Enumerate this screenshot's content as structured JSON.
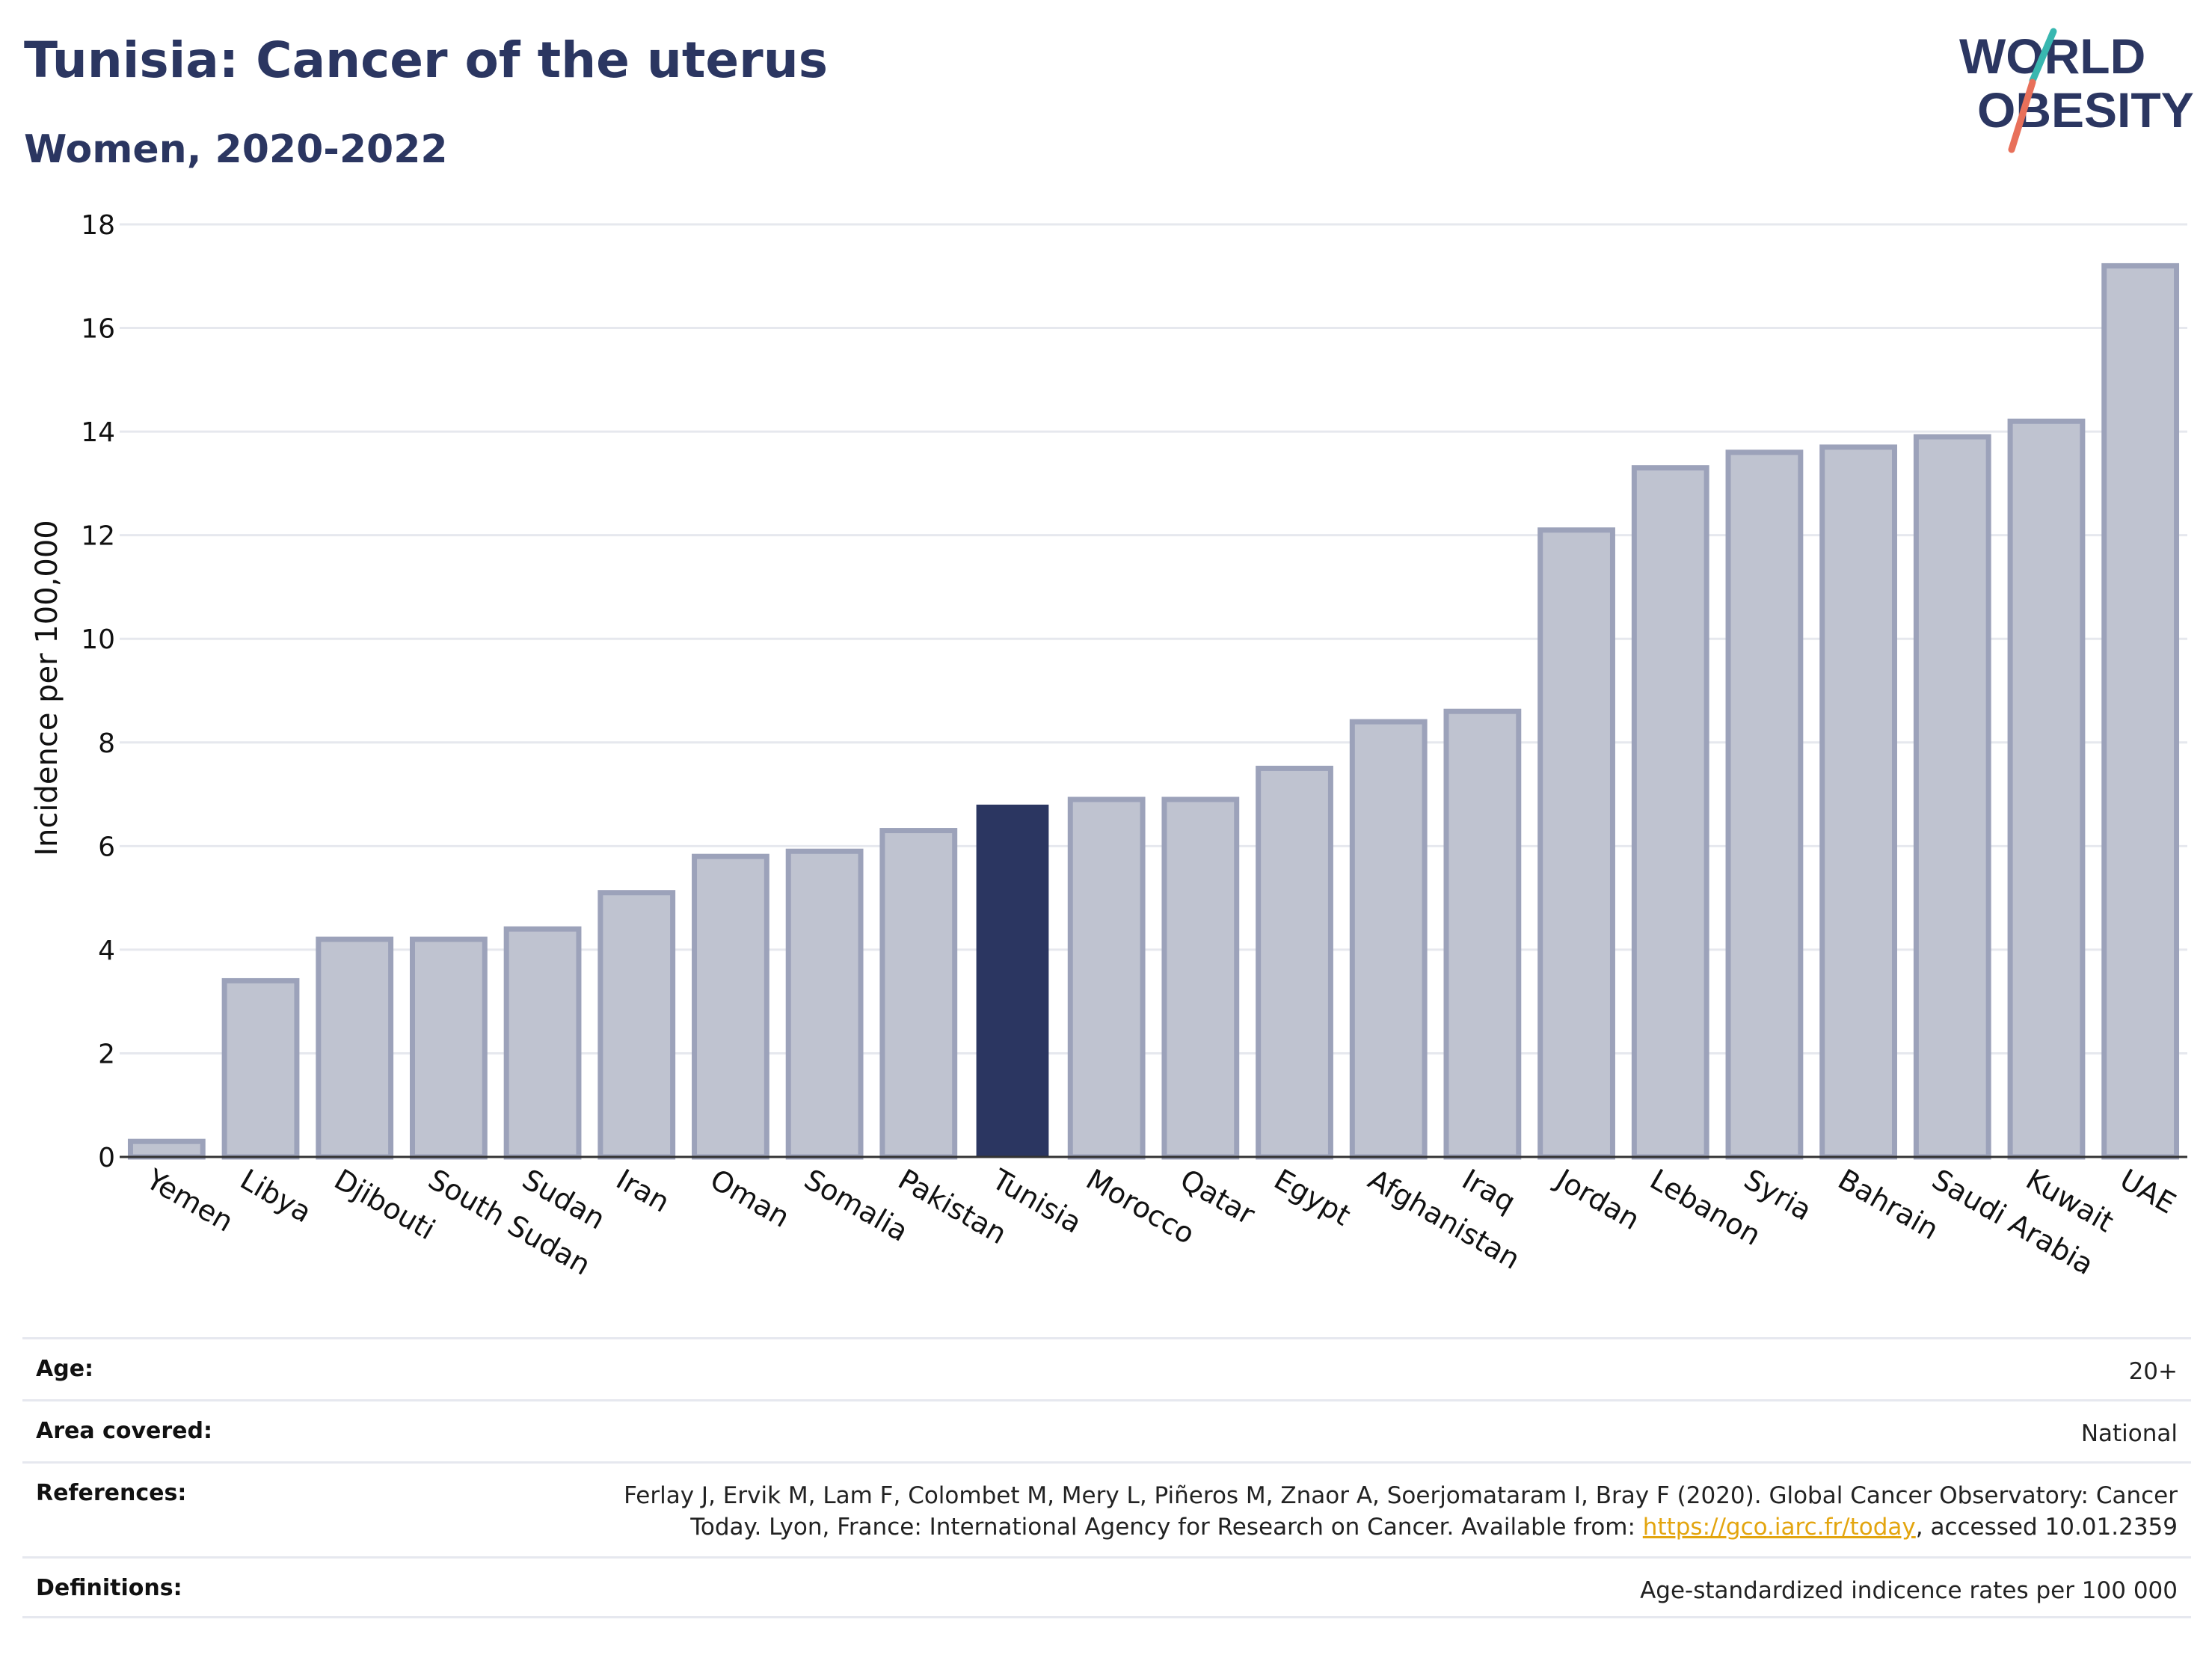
{
  "title": "Tunisia: Cancer of the uterus",
  "subtitle": "Women, 2020-2022",
  "logo": {
    "line1": "WORLD",
    "line2": "OBESITY",
    "accent_teal": "#38b7b0",
    "accent_red": "#e8705a",
    "text_color": "#2b3661"
  },
  "colors": {
    "highlight": "#2b3661",
    "bar_fill": "#bfc3d0",
    "bar_stroke": "#9ca2ba",
    "grid": "#e6e8ee"
  },
  "chart_data": {
    "type": "bar",
    "ylabel": "Incidence per 100,000",
    "xlabel": "",
    "ylim": [
      0,
      18
    ],
    "yticks": [
      0,
      2,
      4,
      6,
      8,
      10,
      12,
      14,
      16,
      18
    ],
    "grid": true,
    "highlight": "Tunisia",
    "categories": [
      "Yemen",
      "Libya",
      "Djibouti",
      "South Sudan",
      "Sudan",
      "Iran",
      "Oman",
      "Somalia",
      "Pakistan",
      "Tunisia",
      "Morocco",
      "Qatar",
      "Egypt",
      "Afghanistan",
      "Iraq",
      "Jordan",
      "Lebanon",
      "Syria",
      "Bahrain",
      "Saudi Arabia",
      "Kuwait",
      "UAE"
    ],
    "values": [
      0.3,
      3.4,
      4.2,
      4.2,
      4.4,
      5.1,
      5.8,
      5.9,
      6.3,
      6.8,
      6.9,
      6.9,
      7.5,
      8.4,
      8.6,
      12.1,
      13.3,
      13.6,
      13.7,
      13.9,
      14.2,
      17.2
    ]
  },
  "meta": {
    "age_label": "Age:",
    "age_value": "20+",
    "area_label": "Area covered:",
    "area_value": "National",
    "references_label": "References:",
    "references_line1": "Ferlay J, Ervik M, Lam F, Colombet M, Mery L, Piñeros M, Znaor A, Soerjomataram I, Bray F (2020). Global Cancer Observatory: Cancer",
    "references_line2_pre": "Today. Lyon, France: International Agency for Research on Cancer. Available from: ",
    "references_link": "https://gco.iarc.fr/today",
    "references_line2_post": ", accessed 10.01.2359",
    "definitions_label": "Definitions:",
    "definitions_value": "Age-standardized indicence rates per 100 000"
  }
}
